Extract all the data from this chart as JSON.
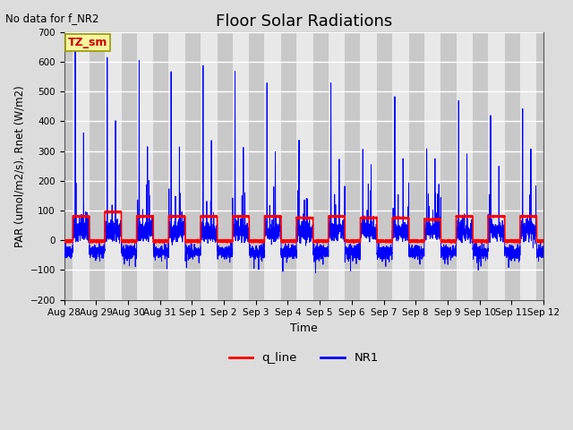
{
  "title": "Floor Solar Radiations",
  "xlabel": "Time",
  "ylabel": "PAR (umol/m2/s), Rnet (W/m2)",
  "ylim": [
    -200,
    700
  ],
  "yticks": [
    -200,
    -100,
    0,
    100,
    200,
    300,
    400,
    500,
    600,
    700
  ],
  "no_data_text": "No data for f_NR2",
  "legend_label_text": "TZ_sm",
  "legend_entries": [
    "q_line",
    "NR1"
  ],
  "x_tick_labels": [
    "Aug 28",
    "Aug 29",
    "Aug 30",
    "Aug 31",
    "Sep 1",
    "Sep 2",
    "Sep 3",
    "Sep 4",
    "Sep 5",
    "Sep 6",
    "Sep 7",
    "Sep 8",
    "Sep 9",
    "Sep 10",
    "Sep 11",
    "Sep 12"
  ],
  "num_days": 15,
  "seed": 42,
  "day_blue_peaks": [
    650,
    630,
    600,
    565,
    590,
    565,
    540,
    345,
    560,
    325,
    525,
    315,
    495,
    440,
    415
  ],
  "day_blue_secondary": [
    350,
    325,
    315,
    310,
    350,
    325,
    325,
    150,
    325,
    315,
    315,
    300,
    305,
    265,
    295
  ],
  "day_red_plateau": [
    80,
    95,
    80,
    80,
    80,
    80,
    80,
    75,
    80,
    75,
    75,
    70,
    80,
    80,
    80
  ]
}
